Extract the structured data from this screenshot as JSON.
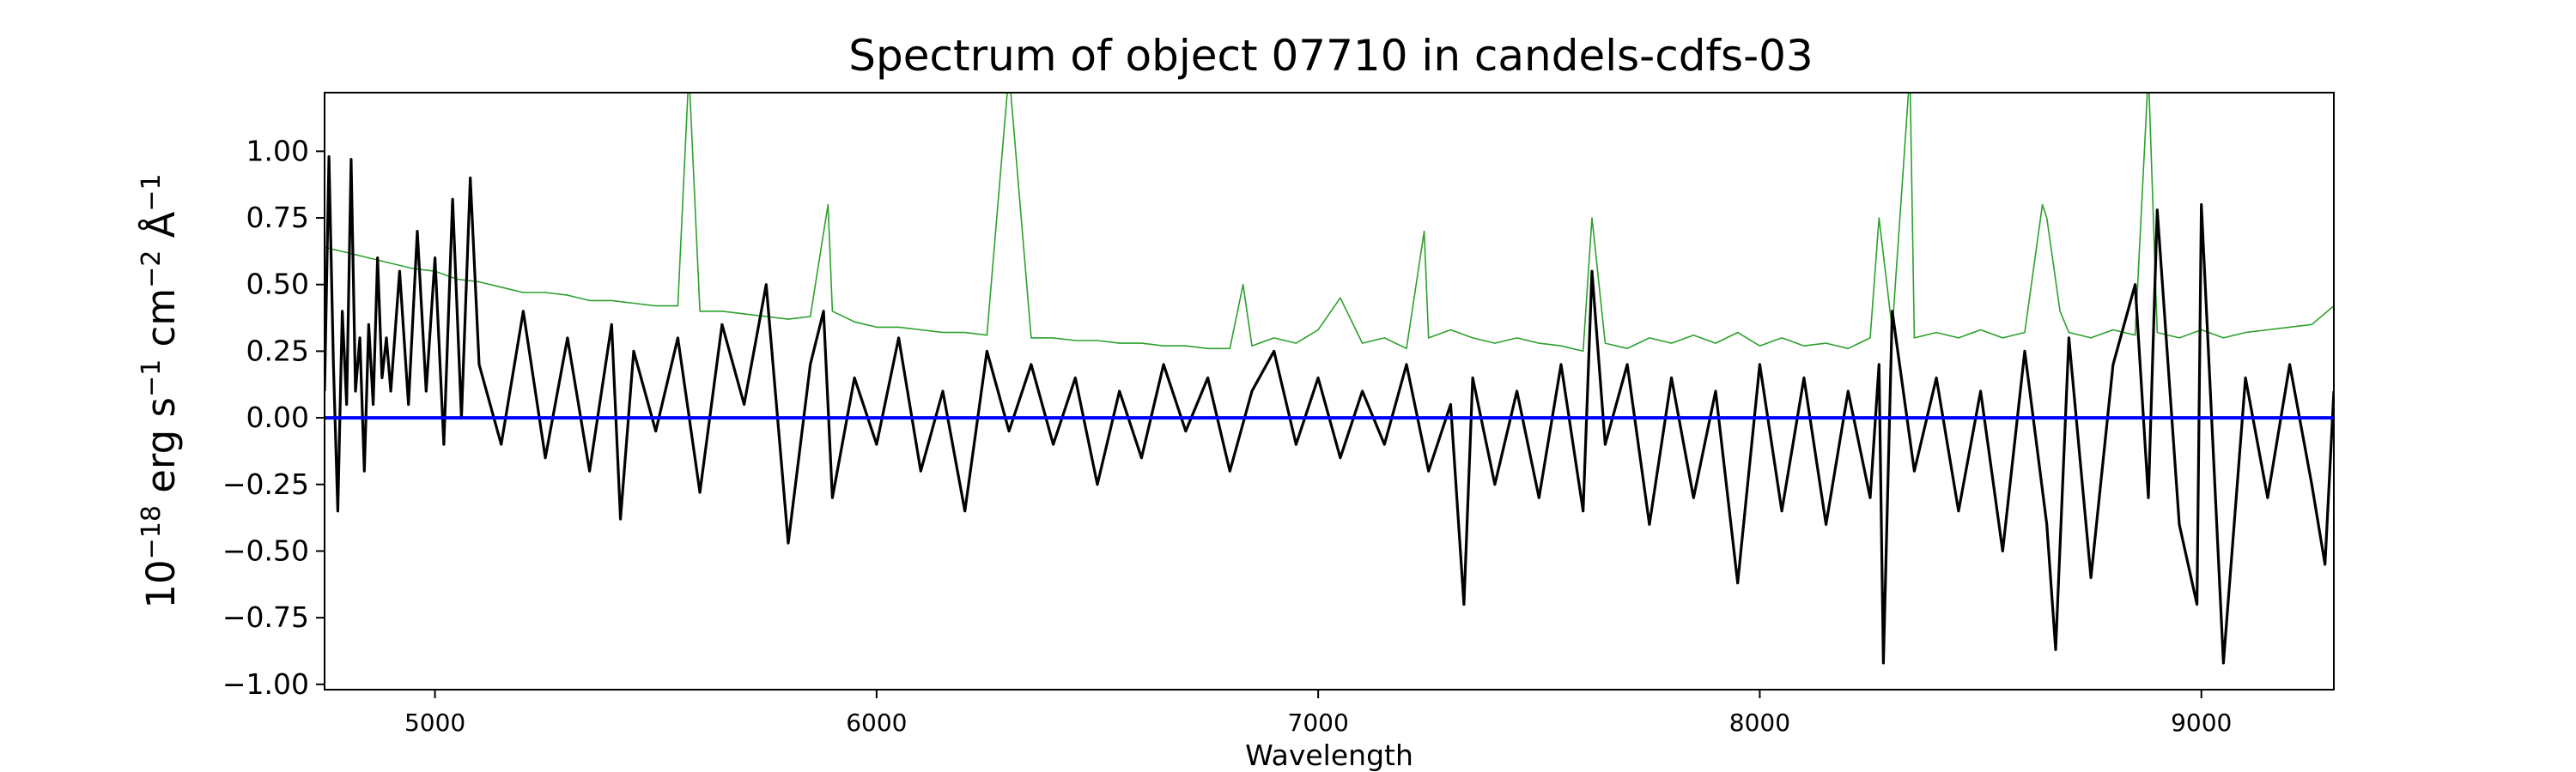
{
  "chart_data": {
    "type": "line",
    "title": "Spectrum of object 07710 in candels-cdfs-03",
    "xlabel": "Wavelength",
    "ylabel_base": "10",
    "ylabel_exp": "−18",
    "ylabel_units": [
      {
        "text": " erg s",
        "sup": "−1"
      },
      {
        "text": " cm",
        "sup": "−2"
      },
      {
        "text": " Å",
        "sup": "−1"
      }
    ],
    "xlim": [
      4750,
      9300
    ],
    "ylim": [
      -1.02,
      1.22
    ],
    "x_ticks": [
      5000,
      6000,
      7000,
      8000,
      9000
    ],
    "x_tick_labels": [
      "5000",
      "6000",
      "7000",
      "8000",
      "9000"
    ],
    "y_ticks": [
      -1.0,
      -0.75,
      -0.5,
      -0.25,
      0.0,
      0.25,
      0.5,
      0.75,
      1.0
    ],
    "y_tick_labels": [
      "−1.00",
      "−0.75",
      "−0.50",
      "−0.25",
      "0.00",
      "0.25",
      "0.50",
      "0.75",
      "1.00"
    ],
    "grid": false,
    "series": [
      {
        "role": "error",
        "color": "#2ca02c",
        "x": [
          4750,
          4800,
          4850,
          4900,
          4950,
          5000,
          5050,
          5100,
          5150,
          5200,
          5250,
          5300,
          5350,
          5400,
          5450,
          5500,
          5550,
          5575,
          5600,
          5650,
          5700,
          5750,
          5800,
          5850,
          5890,
          5900,
          5950,
          6000,
          6050,
          6100,
          6150,
          6200,
          6250,
          6300,
          6350,
          6400,
          6450,
          6500,
          6550,
          6600,
          6650,
          6700,
          6750,
          6800,
          6830,
          6850,
          6900,
          6950,
          7000,
          7050,
          7100,
          7150,
          7200,
          7240,
          7250,
          7300,
          7350,
          7400,
          7450,
          7500,
          7550,
          7600,
          7620,
          7650,
          7700,
          7750,
          7800,
          7850,
          7900,
          7950,
          8000,
          8050,
          8100,
          8150,
          8200,
          8250,
          8270,
          8300,
          8340,
          8350,
          8400,
          8450,
          8500,
          8550,
          8600,
          8640,
          8650,
          8680,
          8700,
          8750,
          8800,
          8850,
          8880,
          8900,
          8950,
          9000,
          9050,
          9100,
          9150,
          9200,
          9250,
          9300
        ],
        "y": [
          0.64,
          0.62,
          0.6,
          0.58,
          0.56,
          0.55,
          0.52,
          0.51,
          0.49,
          0.47,
          0.47,
          0.46,
          0.44,
          0.44,
          0.43,
          0.42,
          0.42,
          1.3,
          0.4,
          0.4,
          0.39,
          0.38,
          0.37,
          0.38,
          0.8,
          0.4,
          0.36,
          0.34,
          0.34,
          0.33,
          0.32,
          0.32,
          0.31,
          1.3,
          0.3,
          0.3,
          0.29,
          0.29,
          0.28,
          0.28,
          0.27,
          0.27,
          0.26,
          0.26,
          0.5,
          0.27,
          0.3,
          0.28,
          0.33,
          0.45,
          0.28,
          0.3,
          0.26,
          0.7,
          0.3,
          0.33,
          0.3,
          0.28,
          0.3,
          0.28,
          0.27,
          0.25,
          0.75,
          0.28,
          0.26,
          0.3,
          0.28,
          0.31,
          0.28,
          0.32,
          0.27,
          0.3,
          0.27,
          0.28,
          0.26,
          0.3,
          0.75,
          0.33,
          1.3,
          0.3,
          0.32,
          0.3,
          0.33,
          0.3,
          0.32,
          0.8,
          0.75,
          0.4,
          0.32,
          0.3,
          0.33,
          0.31,
          1.3,
          0.32,
          0.3,
          0.33,
          0.3,
          0.32,
          0.33,
          0.34,
          0.35,
          0.42
        ]
      },
      {
        "role": "flux",
        "color": "#000000",
        "x": [
          4750,
          4760,
          4770,
          4780,
          4790,
          4800,
          4810,
          4820,
          4830,
          4840,
          4850,
          4860,
          4870,
          4880,
          4890,
          4900,
          4920,
          4940,
          4960,
          4980,
          5000,
          5020,
          5040,
          5060,
          5080,
          5100,
          5150,
          5200,
          5250,
          5300,
          5350,
          5400,
          5420,
          5450,
          5500,
          5550,
          5600,
          5650,
          5700,
          5750,
          5800,
          5850,
          5880,
          5900,
          5950,
          6000,
          6050,
          6100,
          6150,
          6200,
          6250,
          6300,
          6350,
          6400,
          6450,
          6500,
          6550,
          6600,
          6650,
          6700,
          6750,
          6800,
          6850,
          6900,
          6950,
          7000,
          7050,
          7100,
          7150,
          7200,
          7250,
          7300,
          7330,
          7350,
          7400,
          7450,
          7500,
          7550,
          7600,
          7620,
          7650,
          7700,
          7750,
          7800,
          7850,
          7900,
          7950,
          8000,
          8050,
          8100,
          8150,
          8200,
          8250,
          8270,
          8280,
          8300,
          8350,
          8400,
          8450,
          8500,
          8550,
          8600,
          8650,
          8670,
          8700,
          8750,
          8800,
          8850,
          8880,
          8900,
          8950,
          8990,
          9000,
          9050,
          9100,
          9150,
          9200,
          9250,
          9280,
          9300
        ],
        "y": [
          0.1,
          0.98,
          0.2,
          -0.35,
          0.4,
          0.05,
          0.97,
          0.1,
          0.3,
          -0.2,
          0.35,
          0.05,
          0.6,
          0.15,
          0.3,
          0.1,
          0.55,
          0.05,
          0.7,
          0.1,
          0.6,
          -0.1,
          0.82,
          0.0,
          0.9,
          0.2,
          -0.1,
          0.4,
          -0.15,
          0.3,
          -0.2,
          0.35,
          -0.38,
          0.25,
          -0.05,
          0.3,
          -0.28,
          0.35,
          0.05,
          0.5,
          -0.47,
          0.2,
          0.4,
          -0.3,
          0.15,
          -0.1,
          0.3,
          -0.2,
          0.1,
          -0.35,
          0.25,
          -0.05,
          0.2,
          -0.1,
          0.15,
          -0.25,
          0.1,
          -0.15,
          0.2,
          -0.05,
          0.15,
          -0.2,
          0.1,
          0.25,
          -0.1,
          0.15,
          -0.15,
          0.1,
          -0.1,
          0.2,
          -0.2,
          0.05,
          -0.7,
          0.15,
          -0.25,
          0.1,
          -0.3,
          0.2,
          -0.35,
          0.55,
          -0.1,
          0.2,
          -0.4,
          0.15,
          -0.3,
          0.1,
          -0.62,
          0.2,
          -0.35,
          0.15,
          -0.4,
          0.1,
          -0.3,
          0.2,
          -0.92,
          0.4,
          -0.2,
          0.15,
          -0.35,
          0.1,
          -0.5,
          0.25,
          -0.4,
          -0.87,
          0.3,
          -0.6,
          0.2,
          0.5,
          -0.3,
          0.78,
          -0.4,
          -0.7,
          0.8,
          -0.92,
          0.15,
          -0.3,
          0.2,
          -0.25,
          -0.55,
          0.1
        ]
      },
      {
        "role": "zero",
        "color": "#0000ff",
        "x": [
          4750,
          9300
        ],
        "y": [
          0,
          0
        ]
      }
    ]
  }
}
